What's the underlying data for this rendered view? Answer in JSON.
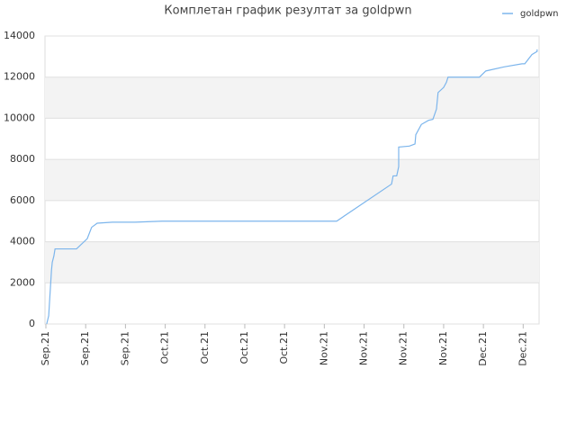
{
  "chart_data": {
    "type": "line",
    "title": "Комплетан график резултат за goldpwn",
    "x": [
      0.02,
      0.07,
      0.14,
      0.16,
      0.2,
      0.23,
      0.77,
      1.04,
      1.15,
      1.29,
      1.67,
      2.24,
      2.92,
      7.31,
      8.69,
      8.73,
      8.82,
      8.87,
      8.87,
      9.14,
      9.28,
      9.3,
      9.44,
      9.62,
      9.73,
      9.82,
      9.86,
      10.0,
      10.07,
      10.11,
      10.9,
      11.06,
      11.52,
      11.97,
      12.04,
      12.22,
      12.35,
      12.35
    ],
    "series": [
      {
        "name": "goldpwn",
        "color": "#7cb5ec",
        "values": [
          0,
          400,
          2600,
          3000,
          3300,
          3650,
          3650,
          4150,
          4700,
          4900,
          4950,
          4950,
          5000,
          5000,
          6800,
          7200,
          7200,
          7650,
          8600,
          8650,
          8750,
          9200,
          9700,
          9900,
          9950,
          10450,
          11250,
          11500,
          11750,
          12000,
          12000,
          12300,
          12500,
          12650,
          12650,
          13100,
          13250,
          13350
        ]
      }
    ],
    "xlim": [
      0,
      12.4
    ],
    "xticks": [
      {
        "value": 0,
        "label": "Sep.21"
      },
      {
        "value": 1,
        "label": "Sep.21"
      },
      {
        "value": 2,
        "label": "Sep.21"
      },
      {
        "value": 3,
        "label": "Oct.21"
      },
      {
        "value": 4,
        "label": "Oct.21"
      },
      {
        "value": 5,
        "label": "Oct.21"
      },
      {
        "value": 6,
        "label": "Oct.21"
      },
      {
        "value": 7,
        "label": "Nov.21"
      },
      {
        "value": 8,
        "label": "Nov.21"
      },
      {
        "value": 9,
        "label": "Nov.21"
      },
      {
        "value": 10,
        "label": "Nov.21"
      },
      {
        "value": 11,
        "label": "Dec.21"
      },
      {
        "value": 12,
        "label": "Dec.21"
      }
    ],
    "ylim": [
      0,
      14000
    ],
    "yticks": [
      0,
      2000,
      4000,
      6000,
      8000,
      10000,
      12000,
      14000
    ],
    "grid": true,
    "bands": true,
    "legend": "top-right"
  }
}
